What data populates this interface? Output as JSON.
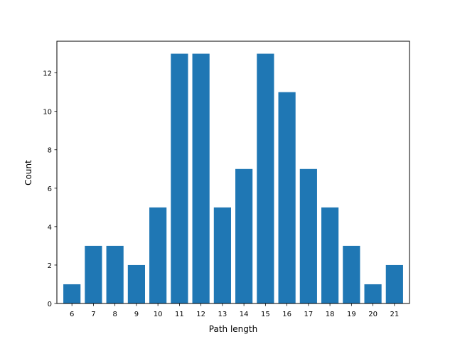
{
  "chart_data": {
    "type": "bar",
    "title": "",
    "xlabel": "Path length",
    "ylabel": "Count",
    "categories": [
      "6",
      "7",
      "8",
      "9",
      "10",
      "11",
      "12",
      "13",
      "14",
      "15",
      "16",
      "17",
      "18",
      "19",
      "20",
      "21"
    ],
    "values": [
      1,
      3,
      3,
      2,
      5,
      13,
      13,
      5,
      7,
      13,
      11,
      7,
      5,
      3,
      1,
      2
    ],
    "ylim": [
      0,
      13.65
    ],
    "yticks": [
      0,
      2,
      4,
      6,
      8,
      10,
      12
    ],
    "grid": false,
    "bar_color": "#1f77b4"
  }
}
